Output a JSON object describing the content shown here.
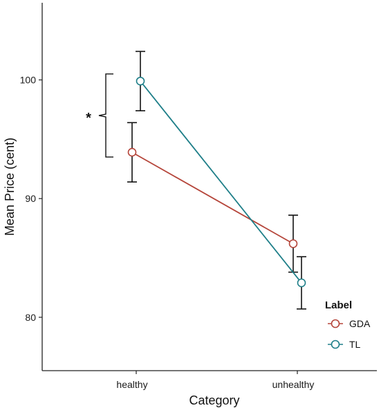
{
  "chart_data": {
    "type": "line",
    "xlabel": "Category",
    "ylabel": "Mean Price (cent)",
    "categories": [
      "healthy",
      "unhealthy"
    ],
    "ylim": [
      75.5,
      106.5
    ],
    "yticks": [
      80,
      90,
      100
    ],
    "grid": false,
    "legend": {
      "title": "Label",
      "position": "right"
    },
    "series": [
      {
        "name": "GDA",
        "color": "#b5453a",
        "values": [
          93.9,
          86.2
        ],
        "error_low": [
          91.4,
          83.8
        ],
        "error_high": [
          96.4,
          88.6
        ]
      },
      {
        "name": "TL",
        "color": "#1f7f89",
        "values": [
          99.9,
          82.9
        ],
        "error_low": [
          97.4,
          80.7
        ],
        "error_high": [
          102.4,
          85.1
        ]
      }
    ],
    "annotation": {
      "text": "*",
      "category": "healthy",
      "y_range": [
        93.5,
        100.5
      ]
    }
  }
}
